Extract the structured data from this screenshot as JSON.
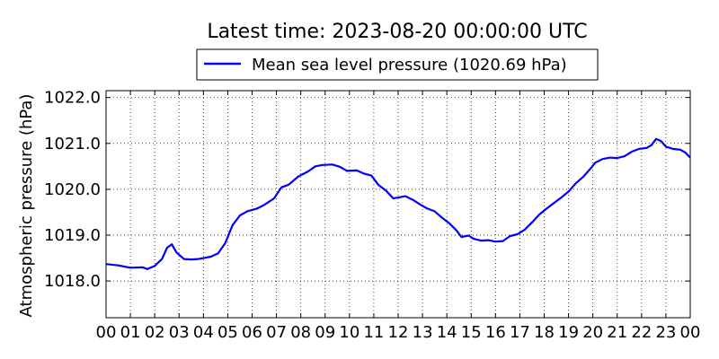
{
  "chart_data": {
    "type": "line",
    "title": "Latest time: 2023-08-20 00:00:00 UTC",
    "ylabel": "Atmospheric pressure (hPa)",
    "xlabel": "",
    "xlim": [
      0,
      24
    ],
    "ylim": [
      1017.2,
      1022.15
    ],
    "grid": true,
    "legend_position": "top",
    "x_ticks": [
      "00",
      "01",
      "02",
      "03",
      "04",
      "05",
      "06",
      "07",
      "08",
      "09",
      "10",
      "11",
      "12",
      "13",
      "14",
      "15",
      "16",
      "17",
      "18",
      "19",
      "20",
      "21",
      "22",
      "23",
      "00"
    ],
    "y_ticks": [
      "1018.0",
      "1019.0",
      "1020.0",
      "1021.0",
      "1022.0"
    ],
    "series": [
      {
        "name": "Mean sea level pressure (1020.69 hPa)",
        "color": "#0000ff",
        "x": [
          0,
          0.5,
          1,
          1.5,
          1.7,
          2,
          2.3,
          2.5,
          2.7,
          2.9,
          3.2,
          3.5,
          3.8,
          4,
          4.3,
          4.6,
          4.9,
          5.2,
          5.5,
          5.8,
          6.2,
          6.5,
          6.9,
          7.2,
          7.5,
          7.9,
          8.3,
          8.6,
          8.9,
          9.3,
          9.6,
          9.9,
          10.3,
          10.6,
          10.9,
          11.2,
          11.5,
          11.8,
          12,
          12.3,
          12.6,
          12.9,
          13.2,
          13.5,
          13.8,
          14.1,
          14.4,
          14.6,
          14.9,
          15.1,
          15.4,
          15.7,
          16,
          16.3,
          16.6,
          16.9,
          17.2,
          17.5,
          17.8,
          18.1,
          18.4,
          18.7,
          19,
          19.3,
          19.6,
          19.9,
          20.1,
          20.4,
          20.7,
          21,
          21.3,
          21.6,
          21.9,
          22.2,
          22.4,
          22.6,
          22.8,
          23,
          23.3,
          23.6,
          23.8,
          24
        ],
        "values": [
          1018.37,
          1018.34,
          1018.29,
          1018.3,
          1018.26,
          1018.33,
          1018.48,
          1018.72,
          1018.8,
          1018.62,
          1018.48,
          1018.47,
          1018.48,
          1018.5,
          1018.53,
          1018.6,
          1018.83,
          1019.22,
          1019.43,
          1019.52,
          1019.58,
          1019.66,
          1019.8,
          1020.04,
          1020.1,
          1020.28,
          1020.39,
          1020.5,
          1020.53,
          1020.54,
          1020.49,
          1020.4,
          1020.41,
          1020.34,
          1020.3,
          1020.09,
          1019.97,
          1019.8,
          1019.82,
          1019.85,
          1019.77,
          1019.67,
          1019.58,
          1019.52,
          1019.38,
          1019.26,
          1019.1,
          1018.96,
          1018.99,
          1018.92,
          1018.88,
          1018.89,
          1018.86,
          1018.87,
          1018.98,
          1019.02,
          1019.12,
          1019.28,
          1019.45,
          1019.58,
          1019.7,
          1019.82,
          1019.95,
          1020.13,
          1020.27,
          1020.45,
          1020.58,
          1020.66,
          1020.69,
          1020.68,
          1020.72,
          1020.82,
          1020.88,
          1020.9,
          1020.96,
          1021.1,
          1021.05,
          1020.93,
          1020.88,
          1020.86,
          1020.8,
          1020.69
        ]
      }
    ]
  }
}
